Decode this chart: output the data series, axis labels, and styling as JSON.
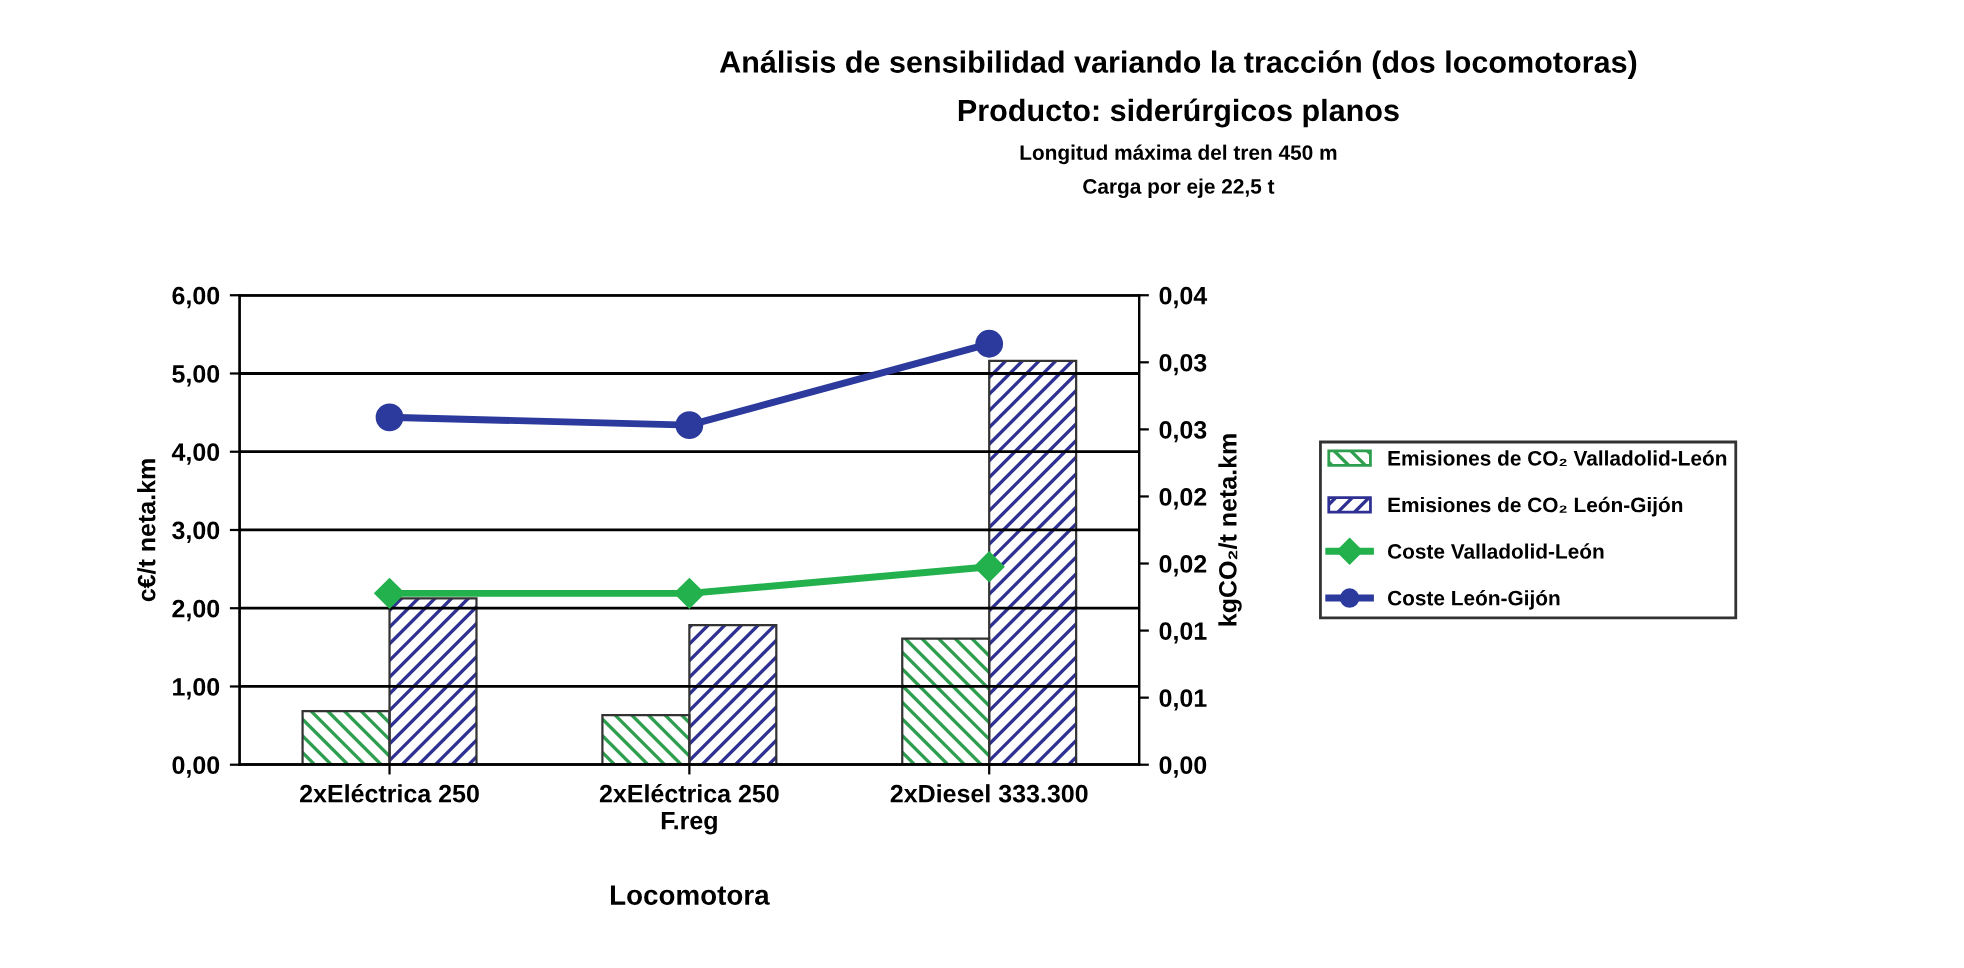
{
  "chart_data": {
    "type": "bar",
    "title": "Análisis de sensibilidad variando la tracción (dos locomotoras)",
    "subtitle": "Producto: siderúrgicos planos",
    "annotations": [
      "Longitud máxima del tren 450 m",
      "Carga por eje 22,5 t"
    ],
    "xlabel": "Locomotora",
    "ylabel": "c€/t neta.km",
    "y2label": "kgCO₂/t neta.km",
    "categories": [
      "2xEléctrica 250",
      "2xEléctrica 250\nF.reg",
      "2xDiesel 333.300"
    ],
    "series": [
      {
        "name": "Emisiones de CO₂ Valladolid-León",
        "axis": "y2",
        "color": "#2e9e4f",
        "values": [
          0.004,
          0.0037,
          0.0094
        ]
      },
      {
        "name": "Emisiones de CO₂ León-Gijón",
        "axis": "y2",
        "color": "#2e3192",
        "values": [
          0.0124,
          0.0104,
          0.0301
        ]
      },
      {
        "name": "Coste Valladolid-León",
        "type": "line",
        "marker": "diamond",
        "color": "#22b14c",
        "values": [
          2.19,
          2.19,
          2.53
        ]
      },
      {
        "name": "Coste León-Gijón",
        "type": "line",
        "marker": "circle",
        "color": "#2b3a9c",
        "values": [
          4.44,
          4.34,
          5.38
        ]
      }
    ],
    "ylim": [
      0,
      6
    ],
    "yticks": [
      {
        "value": 0,
        "label": "0,00"
      },
      {
        "value": 1,
        "label": "1,00"
      },
      {
        "value": 2,
        "label": "2,00"
      },
      {
        "value": 3,
        "label": "3,00"
      },
      {
        "value": 4,
        "label": "4,00"
      },
      {
        "value": 5,
        "label": "5,00"
      },
      {
        "value": 6,
        "label": "6,00"
      }
    ],
    "y2lim": [
      0,
      0.035
    ],
    "y2ticks": [
      {
        "value": 0,
        "label": "0,00"
      },
      {
        "value": 0.005,
        "label": "0,01"
      },
      {
        "value": 0.01,
        "label": "0,01"
      },
      {
        "value": 0.015,
        "label": "0,02"
      },
      {
        "value": 0.02,
        "label": "0,02"
      },
      {
        "value": 0.025,
        "label": "0,03"
      },
      {
        "value": 0.03,
        "label": "0,03"
      },
      {
        "value": 0.035,
        "label": "0,04"
      }
    ],
    "grid": "y",
    "legend": "right",
    "line_style": "solid"
  }
}
